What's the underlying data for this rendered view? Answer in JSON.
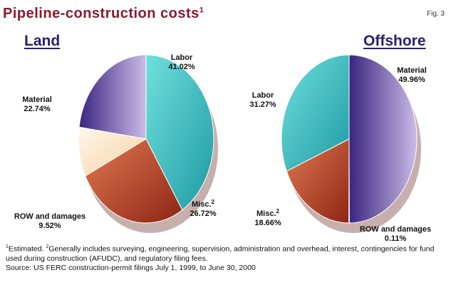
{
  "title": "Pipeline-construction costs",
  "title_sup": "1",
  "fig_label": "Fig. 3",
  "footnote_1": "Estimated.",
  "footnote_2": "Generally includes surveying, engineering, supervision, administration and overhead, interest, contingencies for fund used during construction (AFUDC), and regulatory filing fees.",
  "source": "Source: US FERC construction-permit filings July 1, 1999, to June 30, 2000",
  "colors": {
    "labor": "#2eb8b8",
    "misc": "#b23a22",
    "row": "#fbe2c4",
    "material": "#4a2f8f",
    "title": "#8a1a2a",
    "subtitle": "#27206e"
  },
  "chart_data": [
    {
      "type": "pie",
      "title": "Land",
      "slices": [
        {
          "key": "labor",
          "label": "Labor",
          "value": 41.02,
          "value_text": "41.02%"
        },
        {
          "key": "misc",
          "label": "Misc.",
          "sup": "2",
          "value": 26.72,
          "value_text": "26.72%"
        },
        {
          "key": "row",
          "label": "ROW and damages",
          "value": 9.52,
          "value_text": "9.52%"
        },
        {
          "key": "material",
          "label": "Material",
          "value": 22.74,
          "value_text": "22.74%"
        }
      ]
    },
    {
      "type": "pie",
      "title": "Offshore",
      "slices": [
        {
          "key": "material",
          "label": "Material",
          "value": 49.96,
          "value_text": "49.96%"
        },
        {
          "key": "row",
          "label": "ROW and damages",
          "value": 0.11,
          "value_text": "0.11%"
        },
        {
          "key": "misc",
          "label": "Misc.",
          "sup": "2",
          "value": 18.66,
          "value_text": "18.66%"
        },
        {
          "key": "labor",
          "label": "Labor",
          "value": 31.27,
          "value_text": "31.27%"
        }
      ]
    }
  ]
}
